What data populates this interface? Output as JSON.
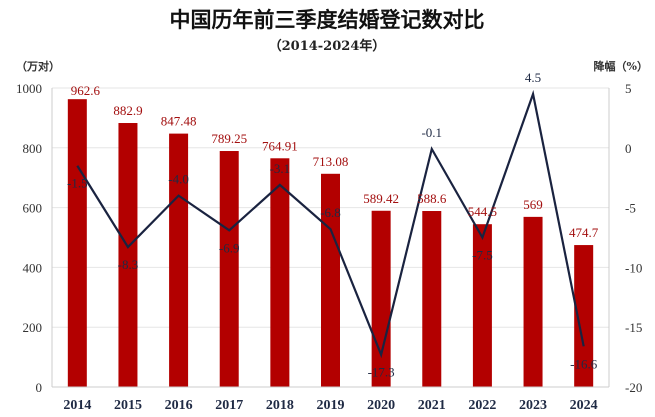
{
  "chart_data": {
    "type": "bar+line",
    "title": "中国历年前三季度结婚登记数对比",
    "subtitle": "（2014-2024年）",
    "ylabel_left": "（万对）",
    "ylabel_right": "降幅（%）",
    "categories": [
      "2014",
      "2015",
      "2016",
      "2017",
      "2018",
      "2019",
      "2020",
      "2021",
      "2022",
      "2023",
      "2024"
    ],
    "series": [
      {
        "type": "bar",
        "values": [
          962.6,
          882.9,
          847.48,
          789.25,
          764.91,
          713.08,
          589.42,
          588.6,
          544.5,
          569,
          474.7
        ],
        "labels": [
          "962.6",
          "882.9",
          "847.48",
          "789.25",
          "764.91",
          "713.08",
          "589.42",
          "588.6",
          "544.5",
          "569",
          "474.7"
        ],
        "color": "#b30000",
        "axis": "left"
      },
      {
        "type": "line",
        "values": [
          -1.5,
          -8.3,
          -4.0,
          -6.9,
          -3.1,
          -6.8,
          -17.3,
          -0.1,
          -7.5,
          4.5,
          -16.6
        ],
        "labels": [
          "-1.5",
          "-8.3",
          "-4.0",
          "-6.9",
          "-3.1",
          "-6.8",
          "-17.3",
          "-0.1",
          "-7.5",
          "4.5",
          "-16.6"
        ],
        "color": "#1a2340",
        "axis": "right"
      }
    ],
    "ylim_left": [
      0,
      1000
    ],
    "yticks_left": [
      "0",
      "200",
      "400",
      "600",
      "800",
      "1000"
    ],
    "ylim_right": [
      -20,
      5
    ],
    "yticks_right": [
      "-20",
      "-15",
      "-10",
      "-5",
      "0",
      "5"
    ],
    "grid": true,
    "legend": "none"
  }
}
